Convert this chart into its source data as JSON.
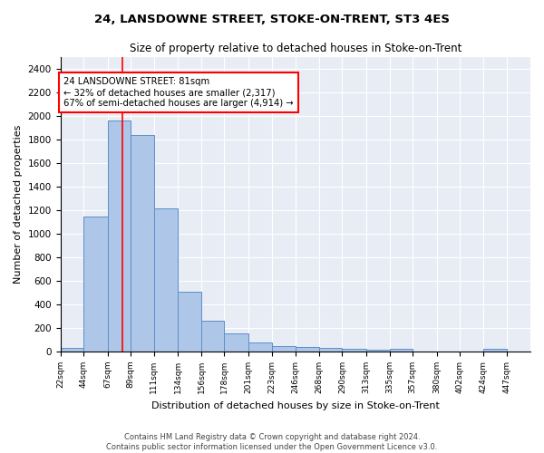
{
  "title": "24, LANSDOWNE STREET, STOKE-ON-TRENT, ST3 4ES",
  "subtitle": "Size of property relative to detached houses in Stoke-on-Trent",
  "xlabel": "Distribution of detached houses by size in Stoke-on-Trent",
  "ylabel": "Number of detached properties",
  "property_size": 81,
  "annotation_line1": "24 LANSDOWNE STREET: 81sqm",
  "annotation_line2": "← 32% of detached houses are smaller (2,317)",
  "annotation_line3": "67% of semi-detached houses are larger (4,914) →",
  "bar_color": "#aec6e8",
  "bar_edge_color": "#5b8fc9",
  "line_color": "red",
  "footer1": "Contains HM Land Registry data © Crown copyright and database right 2024.",
  "footer2": "Contains public sector information licensed under the Open Government Licence v3.0.",
  "bin_edges": [
    22,
    44,
    67,
    89,
    111,
    134,
    156,
    178,
    201,
    223,
    246,
    268,
    290,
    313,
    335,
    357,
    380,
    402,
    424,
    447,
    469
  ],
  "bin_values": [
    30,
    1150,
    1960,
    1840,
    1215,
    510,
    265,
    155,
    80,
    48,
    42,
    35,
    22,
    18,
    20,
    0,
    0,
    0,
    22,
    0
  ],
  "ylim": [
    0,
    2500
  ],
  "yticks": [
    0,
    200,
    400,
    600,
    800,
    1000,
    1200,
    1400,
    1600,
    1800,
    2000,
    2200,
    2400
  ],
  "background_color": "#e8edf5"
}
